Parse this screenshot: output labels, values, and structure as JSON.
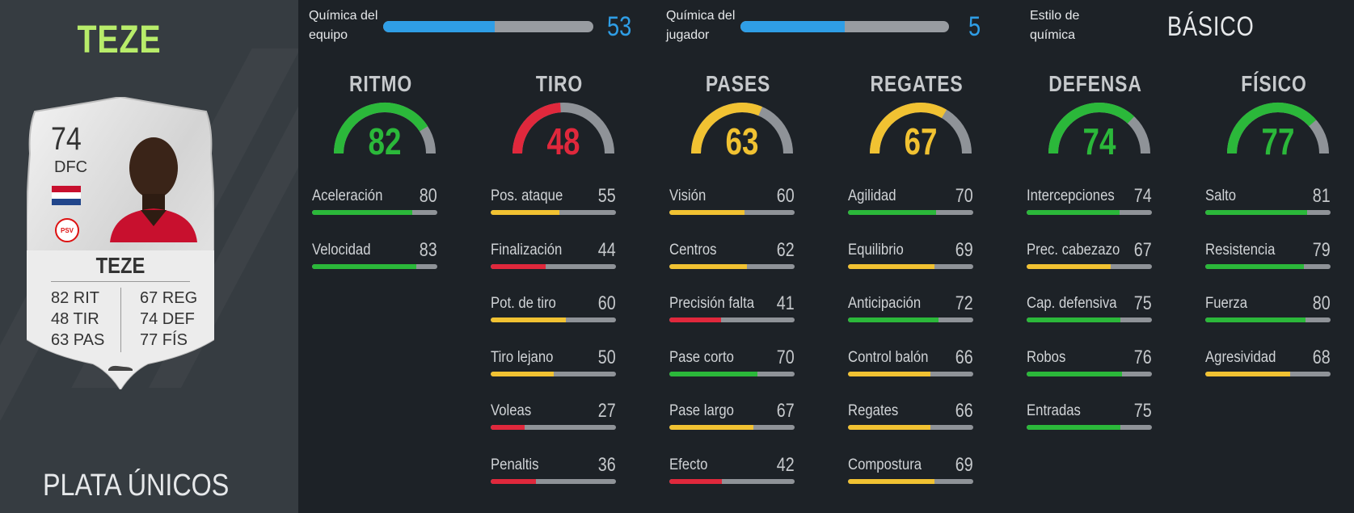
{
  "player": {
    "name": "TEZE",
    "version": "PLATA ÚNICOS",
    "card": {
      "rating": "74",
      "position": "DFC",
      "name": "TEZE",
      "club_badge": "PSV",
      "left_stats": [
        "82 RIT",
        "48 TIR",
        "63 PAS"
      ],
      "right_stats": [
        "67 REG",
        "74 DEF",
        "77 FÍS"
      ]
    }
  },
  "chemistry": {
    "team_label": "Química del equipo",
    "team_value": "53",
    "team_fill": 0.53,
    "player_label": "Química del jugador",
    "player_value": "5",
    "player_fill": 0.5,
    "style_label": "Estilo de química",
    "style_value": "BÁSICO"
  },
  "colors": {
    "green": "#2bb83a",
    "yellow": "#f1c232",
    "red": "#e0283c",
    "blue": "#2f9ee6",
    "accent_name": "#b8ec6a"
  },
  "categories": [
    {
      "title": "RITMO",
      "value": 82,
      "color": "green",
      "stats": [
        {
          "label": "Aceleración",
          "value": 80
        },
        {
          "label": "Velocidad",
          "value": 83
        }
      ]
    },
    {
      "title": "TIRO",
      "value": 48,
      "color": "red",
      "stats": [
        {
          "label": "Pos. ataque",
          "value": 55
        },
        {
          "label": "Finalización",
          "value": 44
        },
        {
          "label": "Pot. de tiro",
          "value": 60
        },
        {
          "label": "Tiro lejano",
          "value": 50
        },
        {
          "label": "Voleas",
          "value": 27
        },
        {
          "label": "Penaltis",
          "value": 36
        }
      ]
    },
    {
      "title": "PASES",
      "value": 63,
      "color": "yellow",
      "stats": [
        {
          "label": "Visión",
          "value": 60
        },
        {
          "label": "Centros",
          "value": 62
        },
        {
          "label": "Precisión falta",
          "value": 41
        },
        {
          "label": "Pase corto",
          "value": 70
        },
        {
          "label": "Pase largo",
          "value": 67
        },
        {
          "label": "Efecto",
          "value": 42
        }
      ]
    },
    {
      "title": "REGATES",
      "value": 67,
      "color": "yellow",
      "stats": [
        {
          "label": "Agilidad",
          "value": 70
        },
        {
          "label": "Equilibrio",
          "value": 69
        },
        {
          "label": "Anticipación",
          "value": 72
        },
        {
          "label": "Control balón",
          "value": 66
        },
        {
          "label": "Regates",
          "value": 66
        },
        {
          "label": "Compostura",
          "value": 69
        }
      ]
    },
    {
      "title": "DEFENSA",
      "value": 74,
      "color": "green",
      "stats": [
        {
          "label": "Intercepciones",
          "value": 74
        },
        {
          "label": "Prec. cabezazo",
          "value": 67
        },
        {
          "label": "Cap. defensiva",
          "value": 75
        },
        {
          "label": "Robos",
          "value": 76
        },
        {
          "label": "Entradas",
          "value": 75
        }
      ]
    },
    {
      "title": "FÍSICO",
      "value": 77,
      "color": "green",
      "stats": [
        {
          "label": "Salto",
          "value": 81
        },
        {
          "label": "Resistencia",
          "value": 79
        },
        {
          "label": "Fuerza",
          "value": 80
        },
        {
          "label": "Agresividad",
          "value": 68
        }
      ]
    }
  ]
}
